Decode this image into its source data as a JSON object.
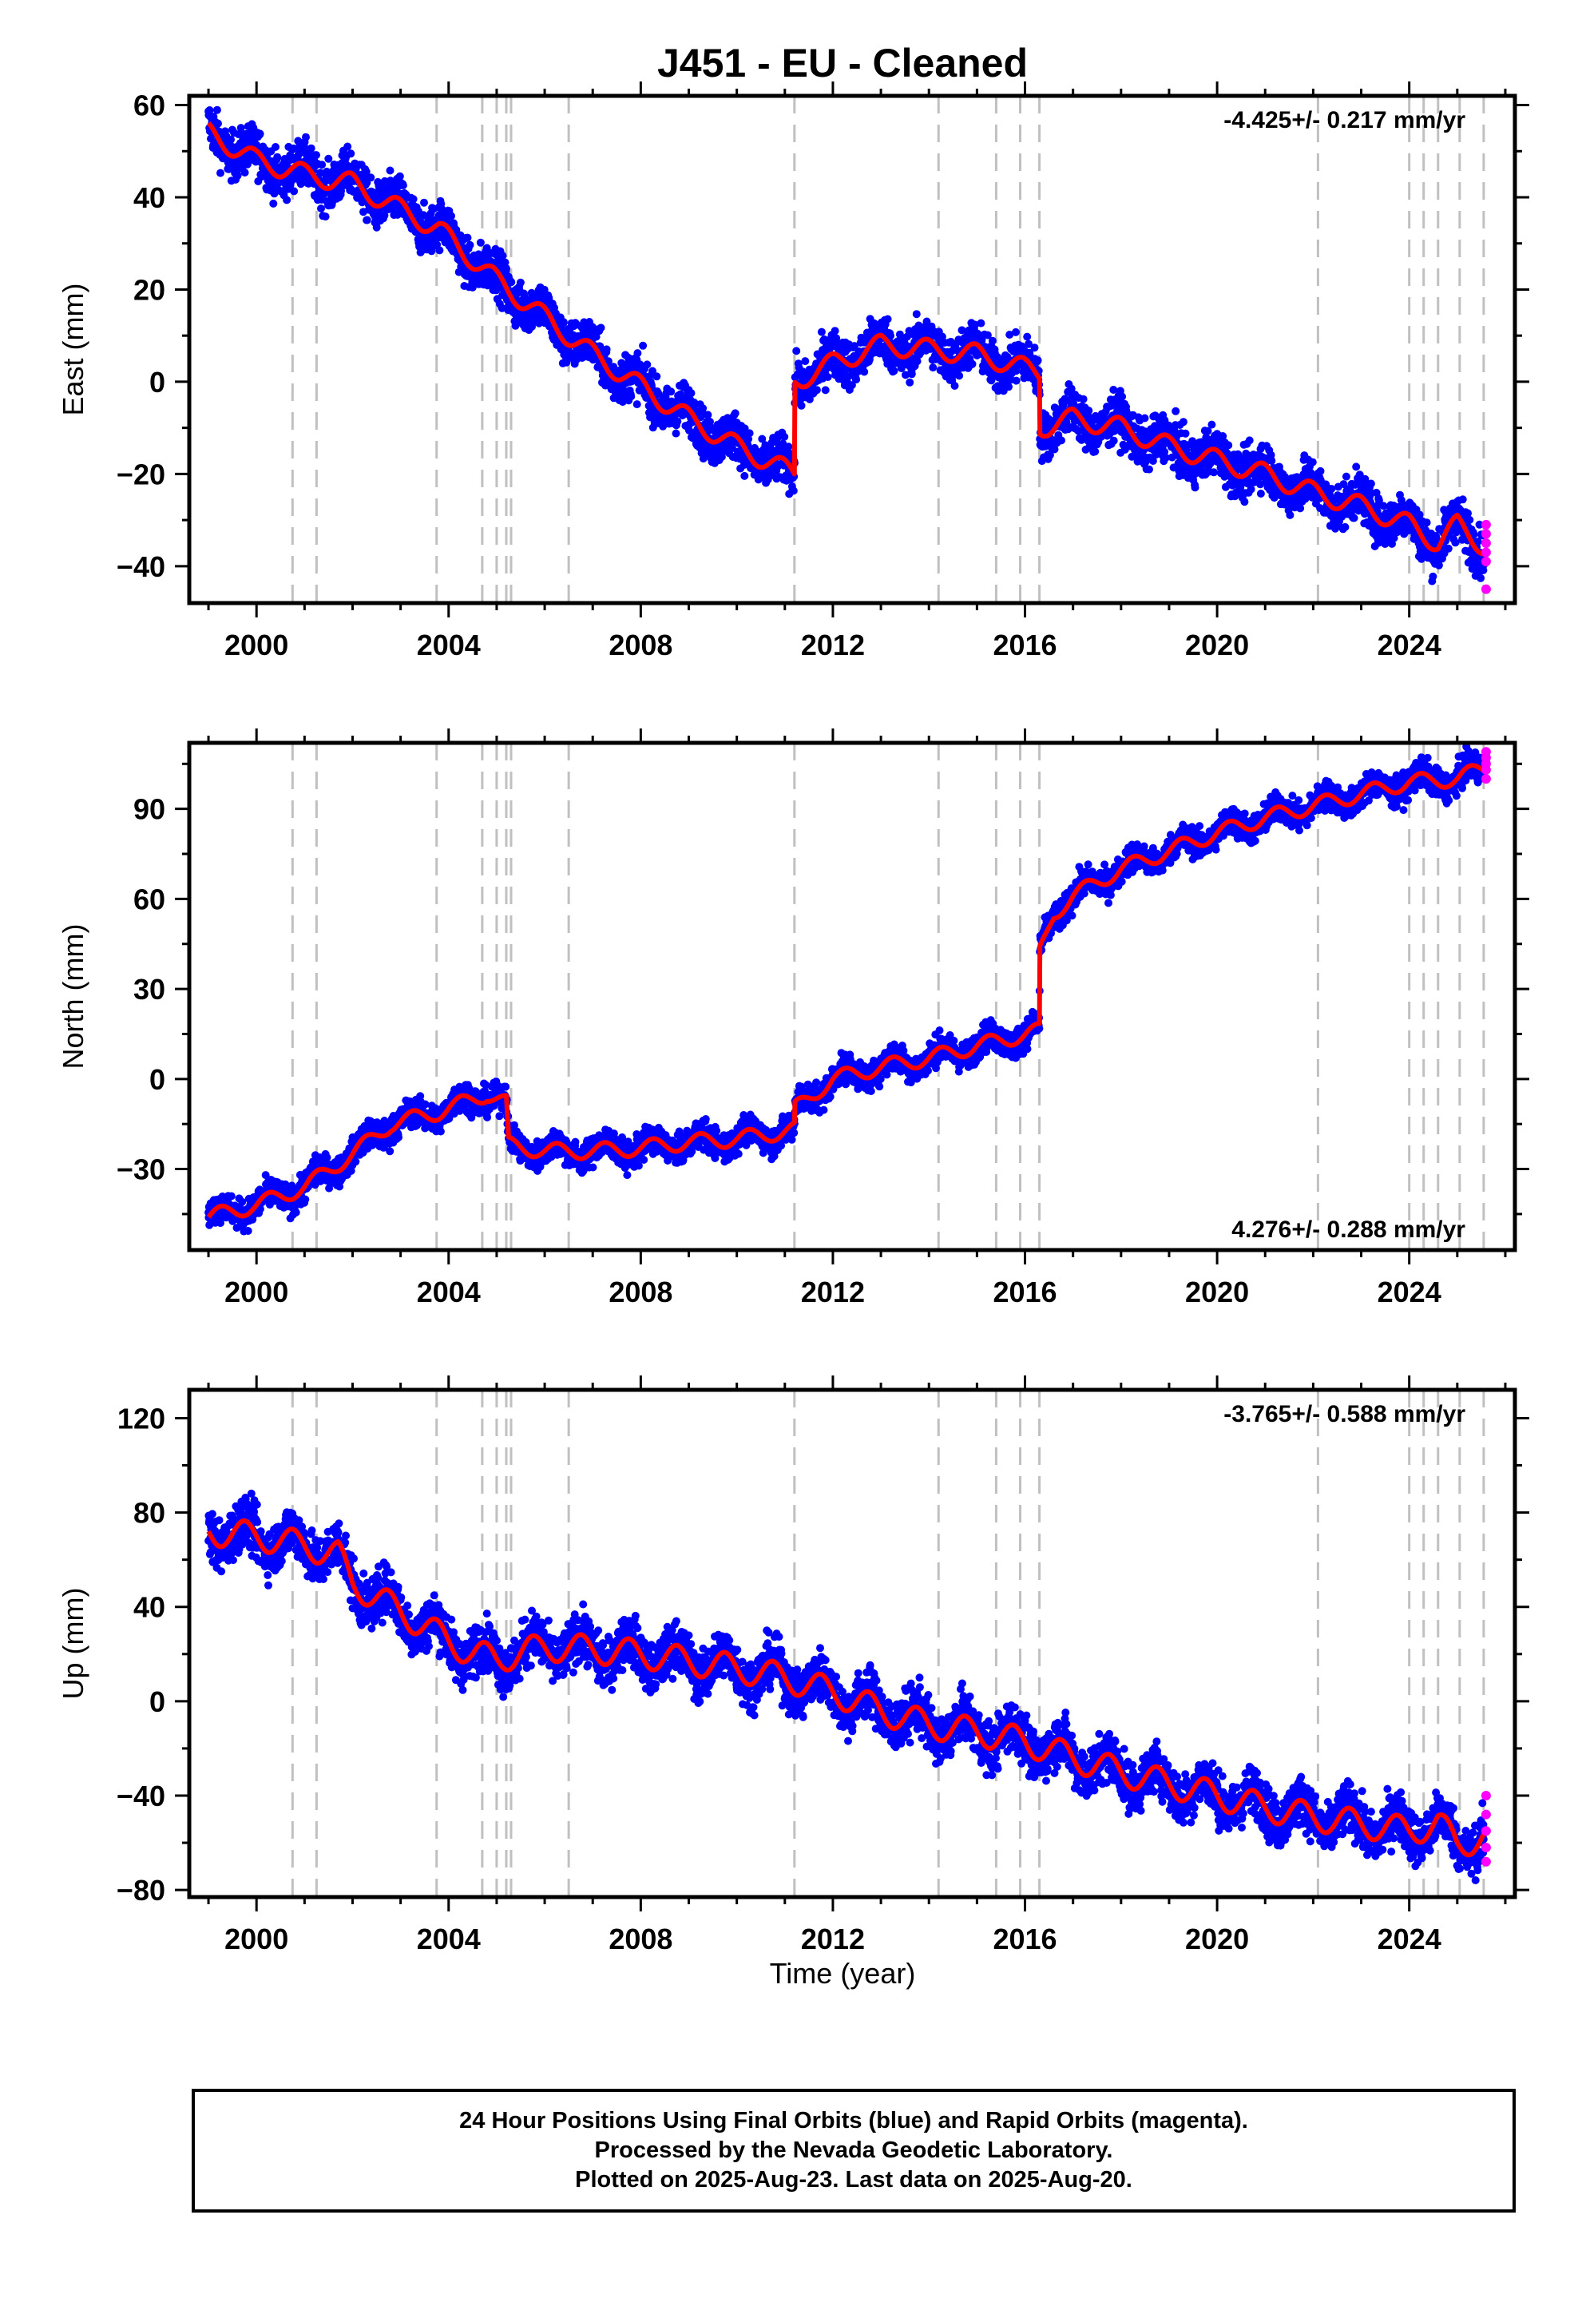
{
  "title": "J451  - EU - Cleaned",
  "xlabel": "Time (year)",
  "footer": {
    "line1": "24 Hour Positions Using Final Orbits (blue) and Rapid Orbits (magenta).",
    "line2": "Processed by the Nevada Geodetic Laboratory.",
    "line3": "Plotted on 2025-Aug-23. Last data on 2025-Aug-20."
  },
  "colors": {
    "final_orbits": "#0000ff",
    "rapid_orbits": "#ff00ff",
    "model": "#ff0000",
    "event_lines": "#c0c0c0"
  },
  "chart_data": [
    {
      "type": "scatter",
      "panel": "east",
      "ylabel": "East (mm)",
      "velocity_label": "-4.425+/- 0.217 mm/yr",
      "velocity_label_position": "top-right",
      "xlim": [
        1998.6,
        2026.2
      ],
      "ylim": [
        -48,
        62
      ],
      "x_ticks": [
        2000,
        2004,
        2008,
        2012,
        2016,
        2020,
        2024
      ],
      "y_ticks": [
        60,
        40,
        20,
        0,
        -20,
        -40
      ],
      "event_lines": [
        2000.75,
        2001.25,
        2003.75,
        2004.7,
        2005.0,
        2005.2,
        2005.3,
        2006.5,
        2011.2,
        2014.2,
        2015.4,
        2015.9,
        2016.3,
        2022.1,
        2024.0,
        2024.3,
        2024.6,
        2025.05,
        2025.55
      ],
      "series": [
        {
          "type": "line",
          "trend": [
            [
              1999.0,
              54
            ],
            [
              2000.0,
              48
            ],
            [
              2001.0,
              45
            ],
            [
              2002.0,
              43
            ],
            [
              2002.7,
              39
            ],
            [
              2003.8,
              33
            ],
            [
              2005.0,
              22
            ],
            [
              2006.0,
              14
            ],
            [
              2007.0,
              6
            ],
            [
              2008.0,
              -1
            ],
            [
              2009.0,
              -8
            ],
            [
              2010.0,
              -14
            ],
            [
              2011.2,
              -20
            ],
            [
              2011.21,
              0
            ],
            [
              2012.0,
              4
            ],
            [
              2013.0,
              8
            ],
            [
              2014.0,
              7
            ],
            [
              2015.0,
              6
            ],
            [
              2016.3,
              2
            ],
            [
              2016.31,
              -10
            ],
            [
              2017.0,
              -8
            ],
            [
              2018.0,
              -10
            ],
            [
              2019.0,
              -14
            ],
            [
              2020.0,
              -17
            ],
            [
              2021.0,
              -20
            ],
            [
              2022.0,
              -24
            ],
            [
              2023.0,
              -27
            ],
            [
              2024.0,
              -31
            ],
            [
              2024.6,
              -35
            ],
            [
              2025.0,
              -31
            ],
            [
              2025.6,
              -36
            ]
          ],
          "seasonal_amplitude": 2.2,
          "seasonal_phase": 0.3,
          "scatter_spread": 3.6
        },
        {
          "type": "scatter",
          "points": [
            [
              2025.6,
              -31
            ],
            [
              2025.6,
              -33
            ],
            [
              2025.6,
              -35
            ],
            [
              2025.6,
              -37
            ],
            [
              2025.6,
              -39
            ],
            [
              2025.6,
              -45
            ]
          ]
        }
      ]
    },
    {
      "type": "scatter",
      "panel": "north",
      "ylabel": "North (mm)",
      "velocity_label": "4.276+/- 0.288 mm/yr",
      "velocity_label_position": "bottom-right",
      "xlim": [
        1998.6,
        2026.2
      ],
      "ylim": [
        -57,
        112
      ],
      "x_ticks": [
        2000,
        2004,
        2008,
        2012,
        2016,
        2020,
        2024
      ],
      "y_ticks": [
        90,
        60,
        30,
        0,
        -30
      ],
      "event_lines": [
        2000.75,
        2001.25,
        2003.75,
        2004.7,
        2005.0,
        2005.2,
        2005.3,
        2006.5,
        2011.2,
        2014.2,
        2015.4,
        2015.9,
        2016.3,
        2022.1,
        2024.0,
        2024.3,
        2024.6,
        2025.05,
        2025.55
      ],
      "series": [
        {
          "type": "line",
          "trend": [
            [
              1999.0,
              -46
            ],
            [
              2000.0,
              -42
            ],
            [
              2001.0,
              -36
            ],
            [
              2002.0,
              -25
            ],
            [
              2002.8,
              -15
            ],
            [
              2003.8,
              -11
            ],
            [
              2004.8,
              -5
            ],
            [
              2005.2,
              -8
            ],
            [
              2005.25,
              -22
            ],
            [
              2006.0,
              -24
            ],
            [
              2007.0,
              -24
            ],
            [
              2008.0,
              -23
            ],
            [
              2009.0,
              -21
            ],
            [
              2010.0,
              -20
            ],
            [
              2011.2,
              -17
            ],
            [
              2011.21,
              -10
            ],
            [
              2012.0,
              0
            ],
            [
              2013.0,
              4
            ],
            [
              2014.0,
              7
            ],
            [
              2015.0,
              11
            ],
            [
              2016.3,
              16
            ],
            [
              2016.31,
              42
            ],
            [
              2016.6,
              55
            ],
            [
              2017.0,
              61
            ],
            [
              2018.0,
              70
            ],
            [
              2019.0,
              76
            ],
            [
              2020.0,
              82
            ],
            [
              2021.0,
              87
            ],
            [
              2022.0,
              91
            ],
            [
              2023.0,
              95
            ],
            [
              2024.0,
              99
            ],
            [
              2025.0,
              100
            ],
            [
              2025.6,
              104
            ]
          ],
          "seasonal_amplitude": 2.6,
          "seasonal_phase": 0.0,
          "scatter_spread": 3.4
        },
        {
          "type": "scatter",
          "points": [
            [
              2025.6,
              100
            ],
            [
              2025.6,
              103
            ],
            [
              2025.6,
              105
            ],
            [
              2025.6,
              107
            ],
            [
              2025.6,
              109
            ]
          ]
        }
      ]
    },
    {
      "type": "scatter",
      "panel": "up",
      "ylabel": "Up (mm)",
      "velocity_label": "-3.765+/- 0.588 mm/yr",
      "velocity_label_position": "top-right",
      "xlim": [
        1998.6,
        2026.2
      ],
      "ylim": [
        -83,
        132
      ],
      "x_ticks": [
        2000,
        2004,
        2008,
        2012,
        2016,
        2020,
        2024
      ],
      "y_ticks": [
        120,
        80,
        40,
        0,
        -40,
        -80
      ],
      "event_lines": [
        2000.75,
        2001.25,
        2003.75,
        2004.7,
        2005.0,
        2005.2,
        2005.3,
        2006.5,
        2011.2,
        2014.2,
        2015.4,
        2015.9,
        2016.3,
        2022.1,
        2024.0,
        2024.3,
        2024.6,
        2025.05,
        2025.55
      ],
      "series": [
        {
          "type": "line",
          "trend": [
            [
              1999.0,
              72
            ],
            [
              2000.0,
              70
            ],
            [
              2001.0,
              66
            ],
            [
              2001.7,
              62
            ],
            [
              2002.0,
              50
            ],
            [
              2003.0,
              38
            ],
            [
              2003.8,
              28
            ],
            [
              2004.5,
              20
            ],
            [
              2005.0,
              18
            ],
            [
              2006.0,
              23
            ],
            [
              2007.0,
              22
            ],
            [
              2008.0,
              20
            ],
            [
              2009.0,
              17
            ],
            [
              2010.0,
              14
            ],
            [
              2011.0,
              10
            ],
            [
              2012.0,
              4
            ],
            [
              2013.0,
              -4
            ],
            [
              2014.0,
              -10
            ],
            [
              2015.0,
              -13
            ],
            [
              2016.0,
              -17
            ],
            [
              2017.0,
              -24
            ],
            [
              2018.0,
              -30
            ],
            [
              2019.0,
              -35
            ],
            [
              2020.0,
              -40
            ],
            [
              2021.0,
              -45
            ],
            [
              2022.0,
              -49
            ],
            [
              2023.0,
              -52
            ],
            [
              2024.0,
              -55
            ],
            [
              2024.6,
              -52
            ],
            [
              2025.0,
              -60
            ],
            [
              2025.6,
              -58
            ]
          ],
          "seasonal_amplitude": 6.0,
          "seasonal_phase": 0.5,
          "scatter_spread": 7.5
        },
        {
          "type": "scatter",
          "points": [
            [
              2025.6,
              -40
            ],
            [
              2025.6,
              -48
            ],
            [
              2025.6,
              -55
            ],
            [
              2025.6,
              -62
            ],
            [
              2025.6,
              -68
            ]
          ]
        }
      ]
    }
  ]
}
